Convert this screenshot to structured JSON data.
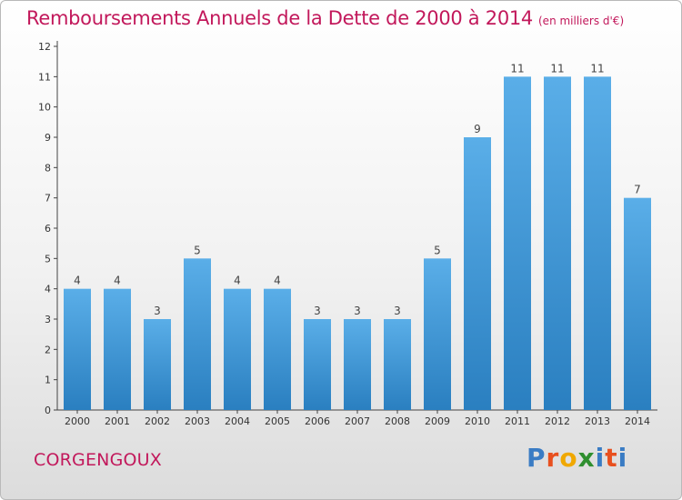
{
  "title": "Remboursements Annuels de la Dette de 2000 à 2014",
  "title_unit": "(en milliers d'€)",
  "commune": "CORGENGOUX",
  "logo_text": "Proxiti",
  "colors": {
    "bar_top": "#5aaee8",
    "bar_bottom": "#2a7fc0",
    "title": "#c2185b",
    "logo": [
      "#3a7cc4",
      "#e8501f",
      "#f0a800",
      "#2f8f2f",
      "#3a7cc4",
      "#e8501f",
      "#3a7cc4"
    ]
  },
  "chart_data": {
    "type": "bar",
    "categories": [
      "2000",
      "2001",
      "2002",
      "2003",
      "2004",
      "2005",
      "2006",
      "2007",
      "2008",
      "2009",
      "2010",
      "2011",
      "2012",
      "2013",
      "2014"
    ],
    "values": [
      4,
      4,
      3,
      5,
      4,
      4,
      3,
      3,
      3,
      5,
      9,
      11,
      11,
      11,
      7
    ],
    "data_labels": [
      "4",
      "4",
      "3",
      "5",
      "4",
      "4",
      "3",
      "3",
      "3",
      "5",
      "9",
      "11",
      "11",
      "11",
      "7"
    ],
    "title": "Remboursements Annuels de la Dette de 2000 à 2014",
    "xlabel": "",
    "ylabel": "",
    "ylim": [
      0,
      12
    ],
    "yticks": [
      "0",
      "1",
      "2",
      "3",
      "4",
      "5",
      "6",
      "7",
      "8",
      "9",
      "10",
      "11",
      "12"
    ],
    "grid": false,
    "legend": "none"
  }
}
